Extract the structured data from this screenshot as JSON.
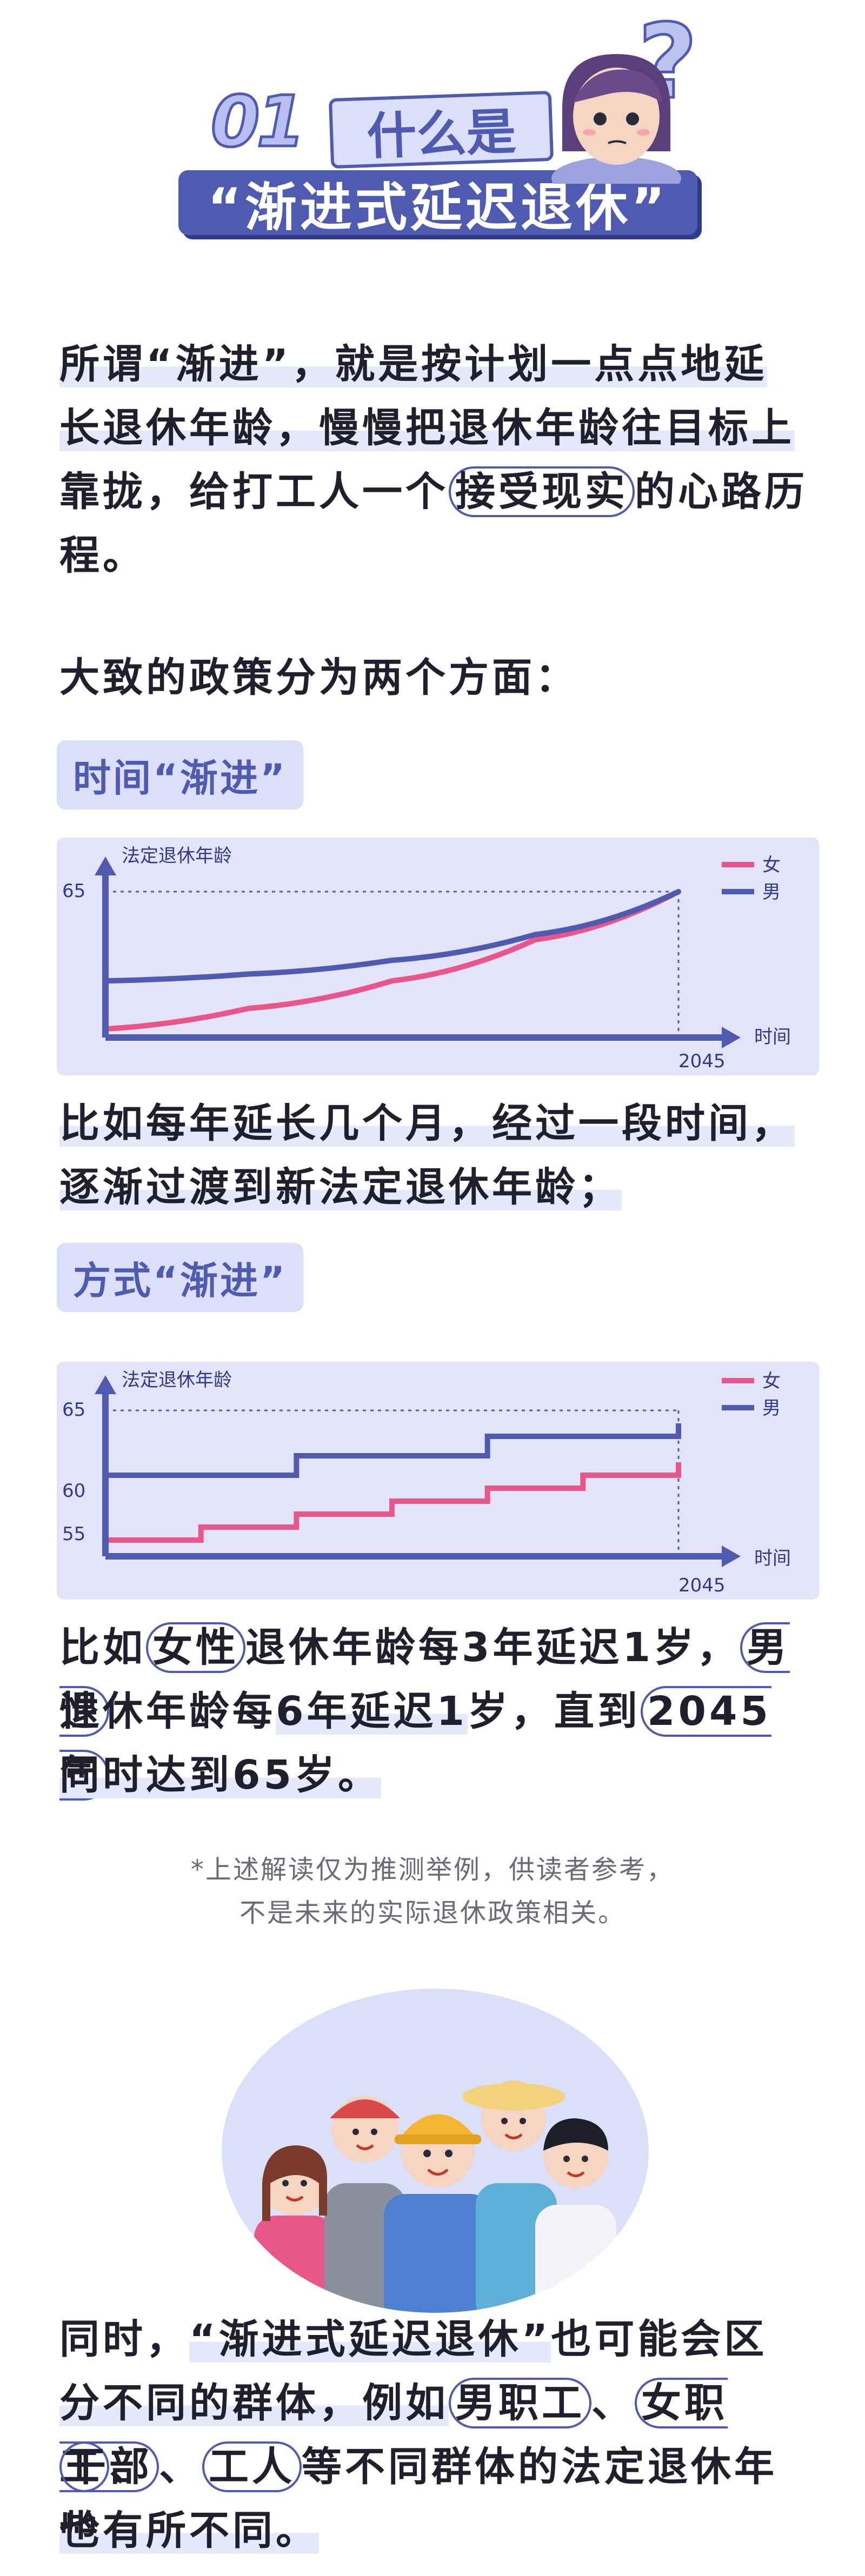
{
  "header": {
    "number": "01",
    "what": "什么是",
    "title": "“渐进式延迟退休”",
    "question_mark": "?"
  },
  "intro": {
    "p1": "所谓“渐进”，就是按计划一点点地延",
    "p2": "长退休年龄，慢慢把退休年龄往目标上",
    "p3": "靠拢，给打工人一个",
    "p3_circ": "接受现实",
    "p3_end": "的心路历",
    "p4": "程。"
  },
  "policy_intro": "大致的政策分为两个方面：",
  "section_time": {
    "tag": "时间“渐进”",
    "desc1": "比如每年延长几个月，经过一段时间，",
    "desc2": "逐渐过渡到新法定退休年龄；"
  },
  "section_method": {
    "tag": "方式“渐进”",
    "desc1_a": "比如",
    "desc1_circ1": "女性",
    "desc1_b": "退休年龄每3年延迟1岁，",
    "desc1_circ2": "男性",
    "desc2_a": "退休年龄每",
    "desc2_circ": "6年延迟1",
    "desc2_b": "岁，直到",
    "desc2_circ2": "2045年",
    "desc3": "同时达到65岁。"
  },
  "note": {
    "line1": "*上述解读仅为推测举例，供读者参考，",
    "line2": "不是未来的实际退休政策相关。"
  },
  "closing": {
    "l1_a": "同时，",
    "l1_hl": "“渐进式延迟退休”",
    "l1_b": "也可能会区",
    "l2_a": "分不同的群体，例如",
    "l2_c1": "男职工",
    "l2_sep": "、",
    "l2_c2": "女职工",
    "l2_end": "、",
    "l3_c1": "干部",
    "l3_sep": "、",
    "l3_c2": "工人",
    "l3_b": "等不同群体的法定退休年龄",
    "l4": "也有所不同。"
  },
  "colors": {
    "accent": "#4f5bb0",
    "female": "#e8568a",
    "male": "#4f5bb0",
    "panel": "#e3e4f9"
  },
  "chart_data": [
    {
      "type": "line",
      "ylabel": "法定退休年龄",
      "xlabel": "时间",
      "x_tick": "2045",
      "y_tick": "65",
      "legend": [
        "女",
        "男"
      ],
      "legend_position": "top-right",
      "series": [
        {
          "name": "女",
          "x": [
            0,
            0.25,
            0.5,
            0.75,
            1.0
          ],
          "values": [
            0.05,
            0.17,
            0.33,
            0.57,
            0.85
          ]
        },
        {
          "name": "男",
          "x": [
            0,
            0.25,
            0.5,
            0.75,
            1.0
          ],
          "values": [
            0.33,
            0.37,
            0.45,
            0.6,
            0.85
          ]
        }
      ]
    },
    {
      "type": "line",
      "ylabel": "法定退休年龄",
      "xlabel": "时间",
      "x_tick": "2045",
      "y_ticks": [
        "65",
        "60",
        "55"
      ],
      "legend": [
        "女",
        "男"
      ],
      "legend_position": "top-right",
      "step": true,
      "series": [
        {
          "name": "女",
          "x": [
            0,
            1,
            2,
            3,
            4,
            5,
            6
          ],
          "values": [
            55,
            56,
            57,
            58,
            59,
            60,
            61
          ]
        },
        {
          "name": "男",
          "x": [
            0,
            2,
            4,
            6
          ],
          "values": [
            60,
            61.5,
            63,
            64
          ]
        }
      ]
    }
  ]
}
